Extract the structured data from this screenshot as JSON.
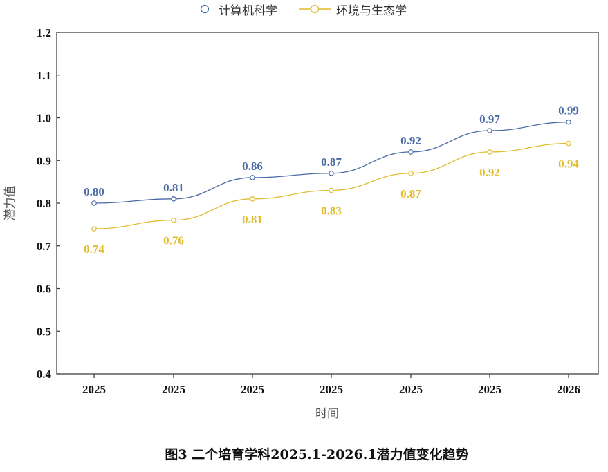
{
  "chart_data": {
    "type": "line",
    "categories": [
      "2025",
      "2025",
      "2025",
      "2025",
      "2025",
      "2025",
      "2026"
    ],
    "series": [
      {
        "name": "计算机科学",
        "color": "#4a6aa5",
        "values": [
          0.8,
          0.81,
          0.86,
          0.87,
          0.92,
          0.97,
          0.99
        ],
        "labels": [
          "0.80",
          "0.81",
          "0.86",
          "0.87",
          "0.92",
          "0.97",
          "0.99"
        ]
      },
      {
        "name": "环境与生态学",
        "color": "#e0bc2e",
        "values": [
          0.74,
          0.76,
          0.81,
          0.83,
          0.87,
          0.92,
          0.94
        ],
        "labels": [
          "0.74",
          "0.76",
          "0.81",
          "0.83",
          "0.87",
          "0.92",
          "0.94"
        ]
      }
    ],
    "ylim": [
      0.4,
      1.2
    ],
    "yticks": [
      "0.4",
      "0.5",
      "0.6",
      "0.7",
      "0.8",
      "0.9",
      "1.0",
      "1.1",
      "1.2"
    ],
    "xlabel": "时间",
    "ylabel": "潜力值",
    "legend_position": "top-center",
    "grid": false
  },
  "caption": "图3 二个培育学科2025.1-2026.1潜力值变化趋势",
  "colors": {
    "axis": "#333333"
  }
}
